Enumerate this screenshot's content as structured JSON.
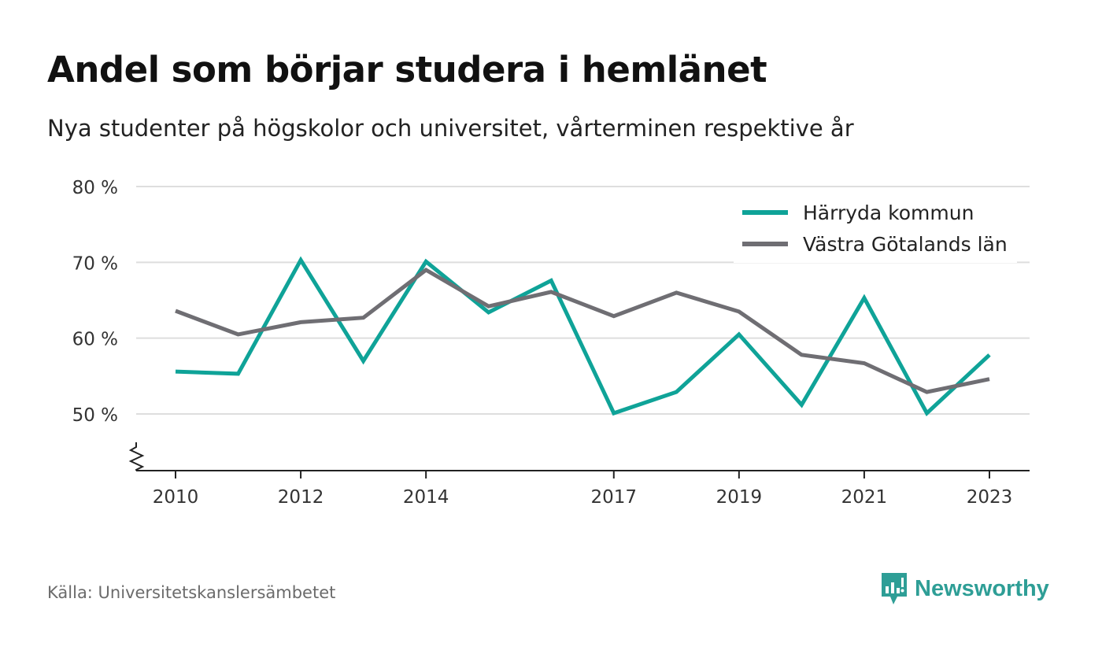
{
  "title": "Andel som börjar studera i hemlänet",
  "subtitle": "Nya studenter på högskolor och universitet, vårterminen respektive år",
  "source": "Källa: Universitetskanslersämbetet",
  "brand": {
    "name": "Newsworthy",
    "icon": "newsworthy-logo-icon",
    "color": "#2e9e96"
  },
  "chart_data": {
    "type": "line",
    "title": "Andel som börjar studera i hemlänet",
    "subtitle": "Nya studenter på högskolor och universitet, vårterminen respektive år",
    "x": [
      2010,
      2011,
      2012,
      2013,
      2014,
      2015,
      2016,
      2017,
      2018,
      2019,
      2020,
      2021,
      2022,
      2023
    ],
    "x_tick_labels": [
      "2010",
      "2012",
      "2014",
      "2017",
      "2019",
      "2021",
      "2023"
    ],
    "y_ticks": [
      50,
      60,
      70,
      80
    ],
    "y_tick_labels": [
      "50 %",
      "60 %",
      "70 %",
      "80 %"
    ],
    "ylim": [
      42.5,
      80
    ],
    "y_axis_break": true,
    "grid": true,
    "legend_position": "top-right",
    "series": [
      {
        "name": "Härryda kommun",
        "color": "#0fa398",
        "values": [
          55.6,
          55.3,
          70.3,
          57.0,
          70.1,
          63.4,
          67.6,
          50.1,
          52.9,
          60.5,
          51.2,
          65.3,
          50.1,
          57.8
        ]
      },
      {
        "name": "Västra Götalands län",
        "color": "#6f6e73",
        "values": [
          63.6,
          60.5,
          62.1,
          62.7,
          69.0,
          64.2,
          66.1,
          62.9,
          66.0,
          63.5,
          57.8,
          56.7,
          52.9,
          54.6
        ]
      }
    ]
  }
}
